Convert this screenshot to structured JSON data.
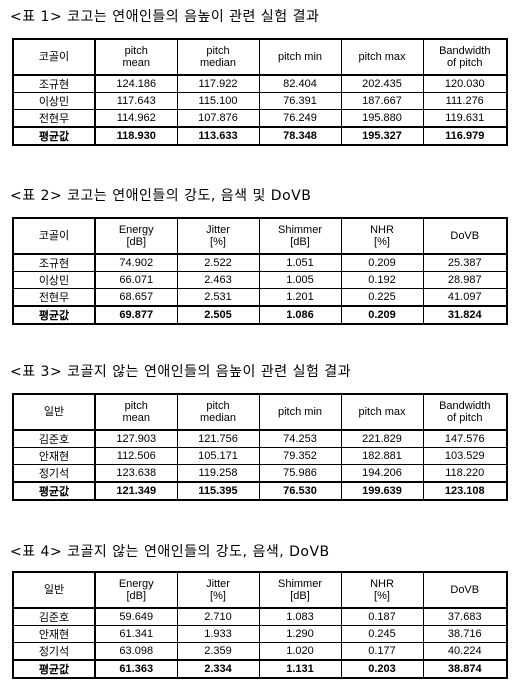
{
  "tables": [
    {
      "caption": "<표 1> 코고는 연애인들의 음높이 관련 실험 결과",
      "headers": [
        [
          "코골이"
        ],
        [
          "pitch",
          "mean"
        ],
        [
          "pitch",
          "median"
        ],
        [
          "pitch min"
        ],
        [
          "pitch max"
        ],
        [
          "Bandwidth",
          "of pitch"
        ]
      ],
      "rows": [
        [
          "조규현",
          "124.186",
          "117.922",
          "82.404",
          "202.435",
          "120.030"
        ],
        [
          "이상민",
          "117.643",
          "115.100",
          "76.391",
          "187.667",
          "111.276"
        ],
        [
          "전현무",
          "114.962",
          "107.876",
          "76.249",
          "195.880",
          "119.631"
        ]
      ],
      "average": [
        "평균값",
        "118.930",
        "113.633",
        "78.348",
        "195.327",
        "116.979"
      ]
    },
    {
      "caption": "<표 2> 코고는 연애인들의 강도, 음색 및 DoVB",
      "headers": [
        [
          "코골이"
        ],
        [
          "Energy",
          "[dB]"
        ],
        [
          "Jitter",
          "[%]"
        ],
        [
          "Shimmer",
          "[dB]"
        ],
        [
          "NHR",
          "[%]"
        ],
        [
          "DoVB"
        ]
      ],
      "rows": [
        [
          "조규현",
          "74.902",
          "2.522",
          "1.051",
          "0.209",
          "25.387"
        ],
        [
          "이상민",
          "66.071",
          "2.463",
          "1.005",
          "0.192",
          "28.987"
        ],
        [
          "전현무",
          "68.657",
          "2.531",
          "1.201",
          "0.225",
          "41.097"
        ]
      ],
      "average": [
        "평균값",
        "69.877",
        "2.505",
        "1.086",
        "0.209",
        "31.824"
      ]
    },
    {
      "caption": "<표 3> 코골지 않는 연애인들의 음높이 관련 실험 결과",
      "headers": [
        [
          "일반"
        ],
        [
          "pitch",
          "mean"
        ],
        [
          "pitch",
          "median"
        ],
        [
          "pitch min"
        ],
        [
          "pitch max"
        ],
        [
          "Bandwidth",
          "of pitch"
        ]
      ],
      "rows": [
        [
          "김준호",
          "127.903",
          "121.756",
          "74.253",
          "221.829",
          "147.576"
        ],
        [
          "안재현",
          "112.506",
          "105.171",
          "79.352",
          "182.881",
          "103.529"
        ],
        [
          "정기석",
          "123.638",
          "119.258",
          "75.986",
          "194.206",
          "118.220"
        ]
      ],
      "average": [
        "평균값",
        "121.349",
        "115.395",
        "76.530",
        "199.639",
        "123.108"
      ]
    },
    {
      "caption": "<표 4> 코골지 않는 연애인들의 강도, 음색, DoVB",
      "headers": [
        [
          "일반"
        ],
        [
          "Energy",
          "[dB]"
        ],
        [
          "Jitter",
          "[%]"
        ],
        [
          "Shimmer",
          "[dB]"
        ],
        [
          "NHR",
          "[%]"
        ],
        [
          "DoVB"
        ]
      ],
      "rows": [
        [
          "김준호",
          "59.649",
          "2.710",
          "1.083",
          "0.187",
          "37.683"
        ],
        [
          "안재현",
          "61.341",
          "1.933",
          "1.290",
          "0.245",
          "38.716"
        ],
        [
          "정기석",
          "63.098",
          "2.359",
          "1.020",
          "0.177",
          "40.224"
        ]
      ],
      "average": [
        "평균값",
        "61.363",
        "2.334",
        "1.131",
        "0.203",
        "38.874"
      ]
    }
  ]
}
